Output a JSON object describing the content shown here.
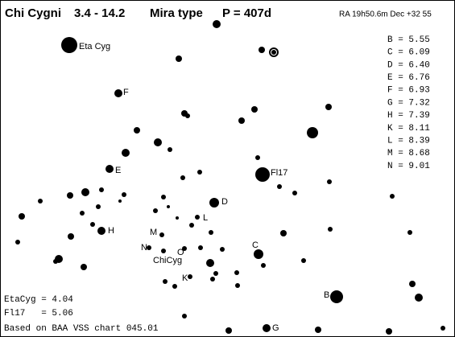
{
  "header": {
    "title": "Chi Cygni",
    "range": "3.4 - 14.2",
    "variable_type": "Mira type",
    "period": "P = 407d",
    "coordinates": "RA 19h50.6m  Dec +32 55"
  },
  "comparison_stars": [
    "B = 5.55",
    "C = 6.09",
    "D = 6.40",
    "E = 6.76",
    "F = 6.93",
    "G = 7.32",
    "H = 7.39",
    "K = 8.11",
    "L = 8.39",
    "M = 8.68",
    "N = 9.01"
  ],
  "star_labels": [
    "Eta Cyg",
    "F",
    "E",
    "Fl17",
    "D",
    "L",
    "M",
    "H",
    "N",
    "O",
    "ChiCyg",
    "C",
    "K",
    "B",
    "G"
  ],
  "footer": {
    "reference_1": "EtaCyg = 4.04",
    "reference_2": "Fl17   = 5.06",
    "source": "Based on BAA VSS chart 045.01"
  }
}
